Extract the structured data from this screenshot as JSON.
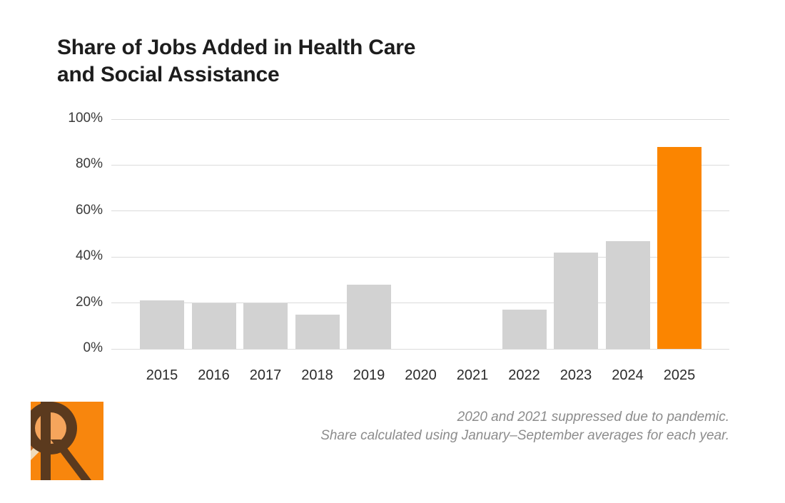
{
  "title": {
    "line1": "Share of Jobs Added in Health Care",
    "line2": "and Social Assistance"
  },
  "footnote": {
    "line1": "2020 and 2021 suppressed due to pandemic.",
    "line2": "Share calculated using January–September averages for each year."
  },
  "logo": {
    "letter": "R",
    "background_color": "#F8860D",
    "letter_color": "#5B3A1E",
    "bowl_fill_color": "#F6A55C",
    "left_band_color": "#C56F2E",
    "cream_wedge_color": "#EFDCBB"
  },
  "colors": {
    "title_text": "#1d1d1d",
    "axis_text": "#3a3a3a",
    "gridline": "#dbdbdb",
    "footnote_text": "#8c8c8c"
  },
  "chart_data": {
    "type": "bar",
    "categories": [
      "2015",
      "2016",
      "2017",
      "2018",
      "2019",
      "2020",
      "2021",
      "2022",
      "2023",
      "2024",
      "2025"
    ],
    "values": [
      21,
      20,
      20,
      15,
      28,
      null,
      null,
      17,
      42,
      47,
      88
    ],
    "suppressed_categories": [
      "2020",
      "2021"
    ],
    "highlight_category": "2025",
    "title": "Share of Jobs Added in Health Care and Social Assistance",
    "xlabel": "",
    "ylabel": "",
    "ylim": [
      0,
      100
    ],
    "ytick_values": [
      0,
      20,
      40,
      60,
      80,
      100
    ],
    "ytick_labels": [
      "0%",
      "20%",
      "40%",
      "60%",
      "80%",
      "100%"
    ],
    "grid": "horizontal",
    "legend": "none",
    "bar_color": "#d2d2d2",
    "highlight_color": "#fb8500"
  }
}
